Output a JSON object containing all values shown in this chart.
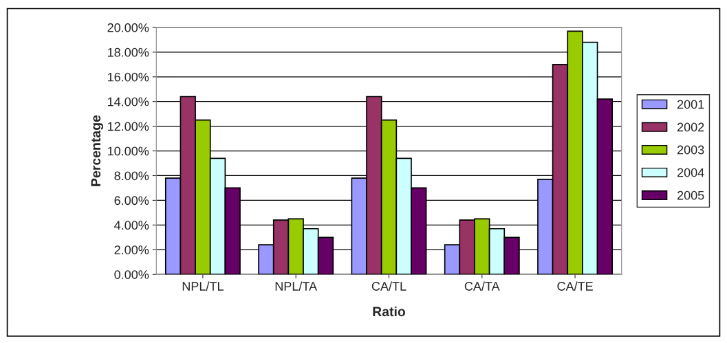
{
  "chart_data": {
    "type": "bar",
    "xlabel": "Ratio",
    "ylabel": "Percentage",
    "categories": [
      "NPL/TL",
      "NPL/TA",
      "CA/TL",
      "CA/TA",
      "CA/TE"
    ],
    "series": [
      {
        "name": "2001",
        "color": "#9999ff",
        "values": [
          7.8,
          2.4,
          7.8,
          2.4,
          7.7
        ]
      },
      {
        "name": "2002",
        "color": "#993366",
        "values": [
          14.4,
          4.4,
          14.4,
          4.4,
          17.0
        ]
      },
      {
        "name": "2003",
        "color": "#99cc00",
        "values": [
          12.5,
          4.5,
          12.5,
          4.5,
          19.7
        ]
      },
      {
        "name": "2004",
        "color": "#ccffff",
        "values": [
          9.4,
          3.7,
          9.4,
          3.7,
          18.8
        ]
      },
      {
        "name": "2005",
        "color": "#660066",
        "values": [
          7.0,
          3.0,
          7.0,
          3.0,
          14.2
        ]
      }
    ],
    "ylim": [
      0,
      20
    ],
    "yticks": [
      {
        "value": 0,
        "label": "0.00%"
      },
      {
        "value": 2,
        "label": "2.00%"
      },
      {
        "value": 4,
        "label": "4.00%"
      },
      {
        "value": 6,
        "label": "6.00%"
      },
      {
        "value": 8,
        "label": "8.00%"
      },
      {
        "value": 10,
        "label": "10.00%"
      },
      {
        "value": 12,
        "label": "12.00%"
      },
      {
        "value": 14,
        "label": "14.00%"
      },
      {
        "value": 16,
        "label": "16.00%"
      },
      {
        "value": 18,
        "label": "18.00%"
      },
      {
        "value": 20,
        "label": "20.00%"
      }
    ],
    "grid": "y",
    "legend": "right"
  }
}
